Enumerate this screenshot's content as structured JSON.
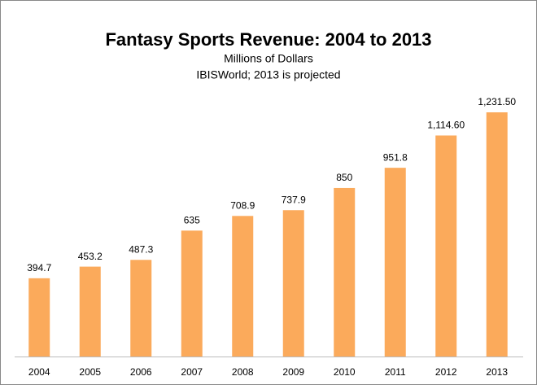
{
  "chart_data": {
    "type": "bar",
    "title": "Fantasy Sports Revenue: 2004 to 2013",
    "subtitle": "Millions of Dollars",
    "source": "IBISWorld; 2013 is projected",
    "categories": [
      "2004",
      "2005",
      "2006",
      "2007",
      "2008",
      "2009",
      "2010",
      "2011",
      "2012",
      "2013"
    ],
    "values": [
      394.7,
      453.2,
      487.3,
      635,
      708.9,
      737.9,
      850,
      951.8,
      1114.6,
      1231.5
    ],
    "value_labels": [
      "394.7",
      "453.2",
      "487.3",
      "635",
      "708.9",
      "737.9",
      "850",
      "951.8",
      "1,114.60",
      "1,231.50"
    ],
    "color": "#fbaa5b"
  }
}
